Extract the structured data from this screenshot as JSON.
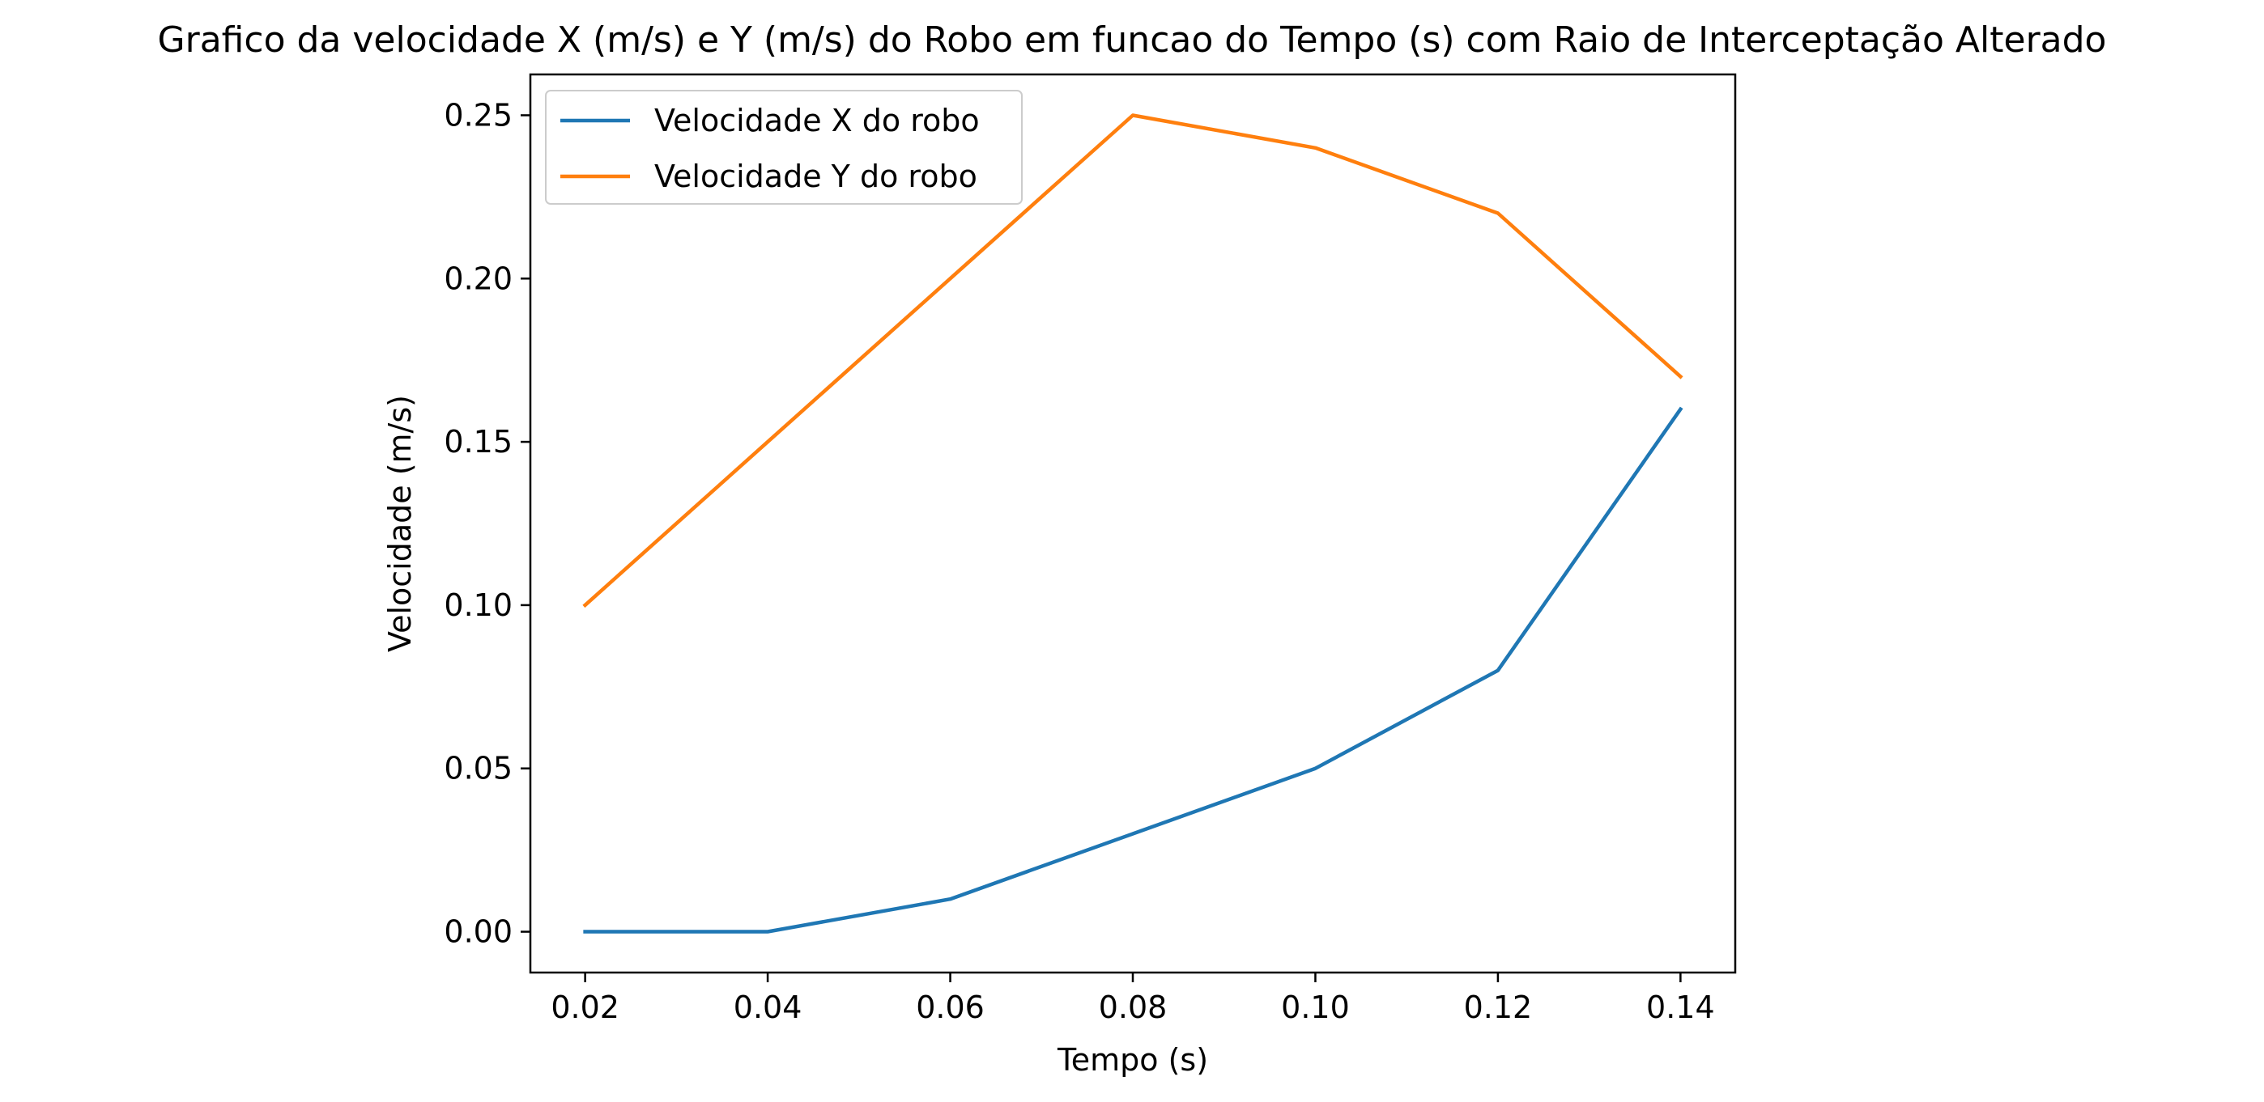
{
  "chart_data": {
    "type": "line",
    "title": "Grafico da velocidade X (m/s) e Y (m/s) do Robo em funcao do Tempo (s) com Raio de Interceptação Alterado",
    "xlabel": "Tempo (s)",
    "ylabel": "Velocidade (m/s)",
    "x": [
      0.02,
      0.04,
      0.06,
      0.08,
      0.1,
      0.12,
      0.14
    ],
    "xticks": [
      "0.02",
      "0.04",
      "0.06",
      "0.08",
      "0.10",
      "0.12",
      "0.14"
    ],
    "yticks": [
      "0.00",
      "0.05",
      "0.10",
      "0.15",
      "0.20",
      "0.25"
    ],
    "xlim": [
      0.014,
      0.146
    ],
    "ylim": [
      -0.0125,
      0.2625
    ],
    "grid": false,
    "legend_position": "top-left",
    "series": [
      {
        "name": "Velocidade X do robo",
        "color": "#1f77b4",
        "values": [
          0.0,
          0.0,
          0.01,
          0.03,
          0.05,
          0.08,
          0.16
        ]
      },
      {
        "name": "Velocidade Y do robo",
        "color": "#ff7f0e",
        "values": [
          0.1,
          0.15,
          0.2,
          0.25,
          0.24,
          0.22,
          0.17
        ]
      }
    ]
  }
}
